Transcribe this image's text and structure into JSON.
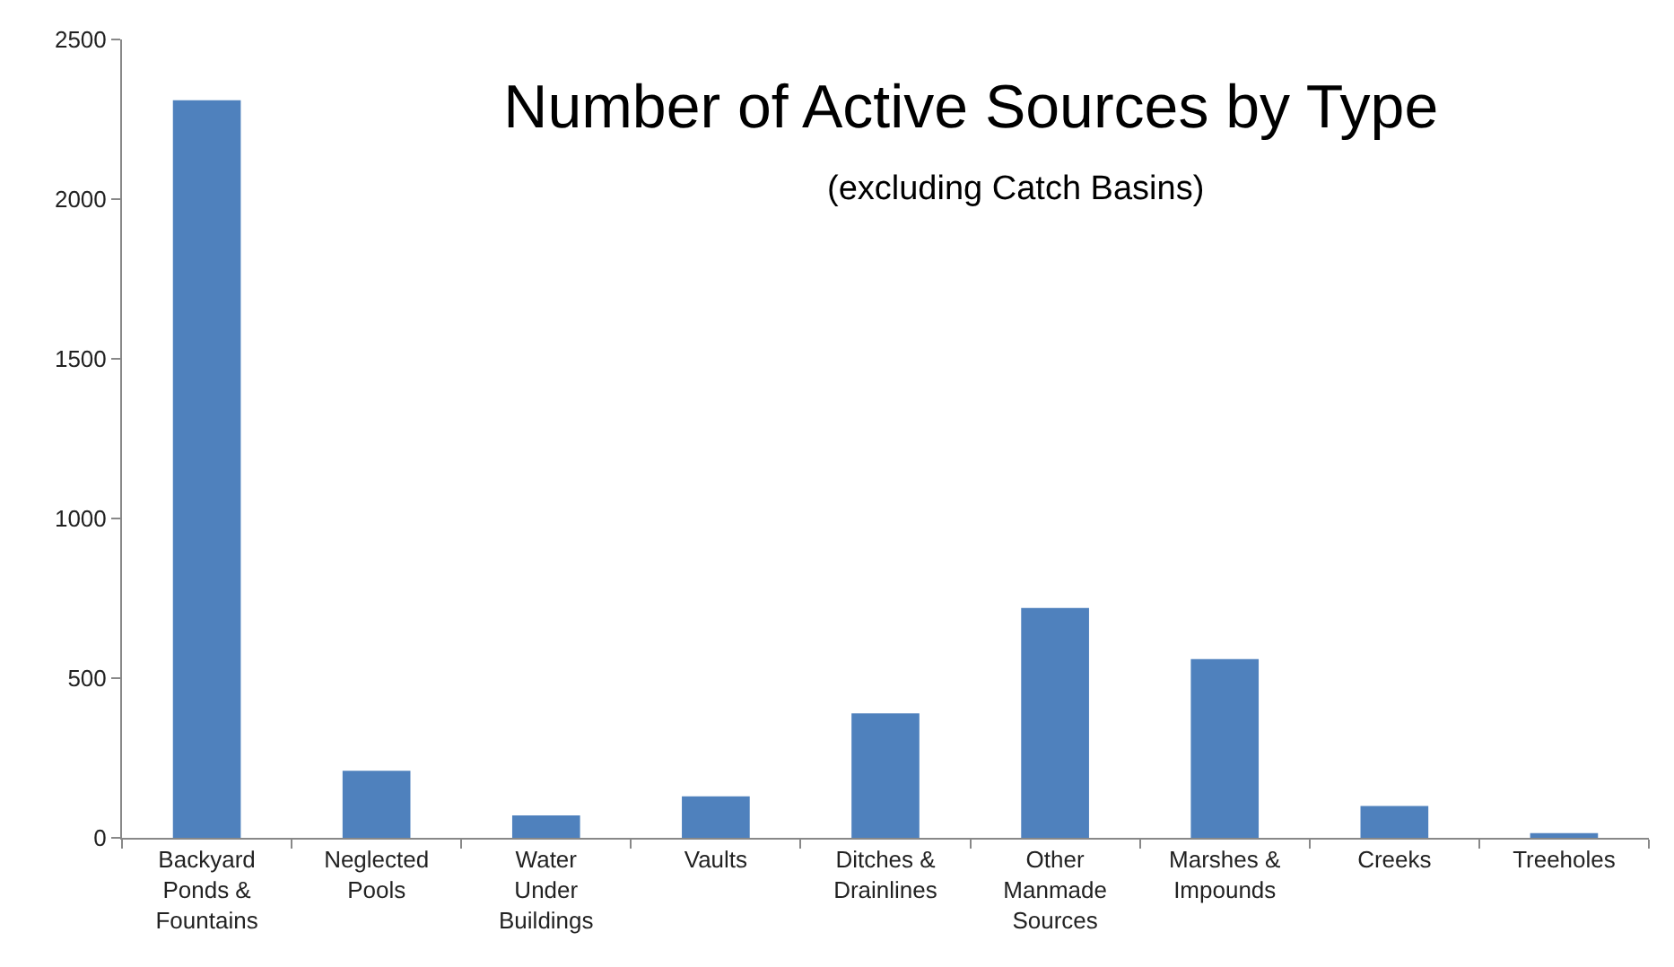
{
  "chart_data": {
    "type": "bar",
    "title": "Number of Active Sources by Type",
    "subtitle": "(excluding Catch Basins)",
    "categories": [
      "Backyard Ponds & Fountains",
      "Neglected Pools",
      "Water Under Buildings",
      "Vaults",
      "Ditches & Drainlines",
      "Other Manmade Sources",
      "Marshes & Impounds",
      "Creeks",
      "Treeholes"
    ],
    "values": [
      2310,
      210,
      70,
      130,
      390,
      720,
      560,
      100,
      15
    ],
    "color": "#4f81bd",
    "ylim": [
      0,
      2500
    ],
    "yticks": [
      0,
      500,
      1000,
      1500,
      2000,
      2500
    ]
  }
}
